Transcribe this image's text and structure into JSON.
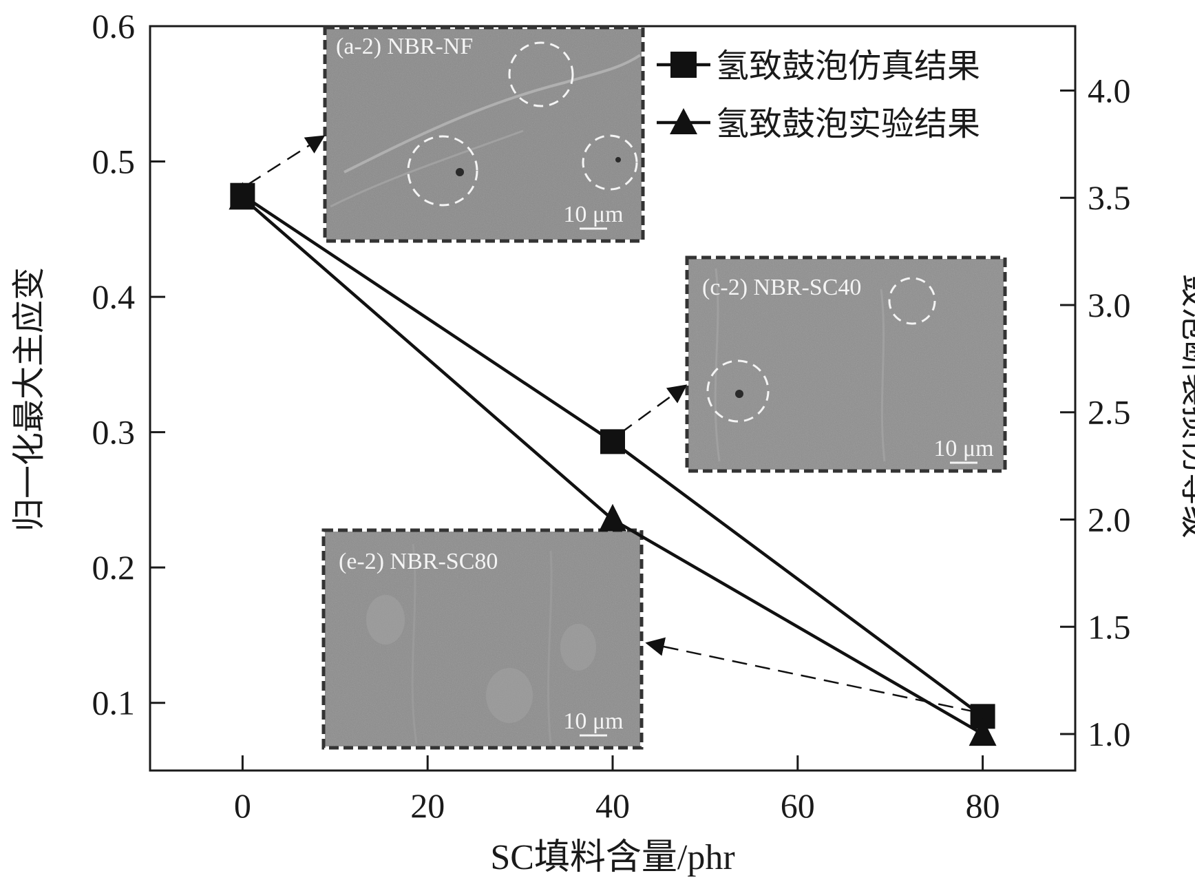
{
  "chart_data": {
    "type": "line",
    "title": "",
    "xlabel": "SC填料含量/phr",
    "ylabel_left": "归一化最大主应变",
    "ylabel_right": "鼓泡断裂损伤等级",
    "xlim": [
      -10,
      90
    ],
    "ylim_left": [
      0.05,
      0.6
    ],
    "ylim_right": [
      0.83,
      4.3
    ],
    "x_ticks": [
      "0",
      "20",
      "40",
      "60",
      "80"
    ],
    "x_tick_values": [
      0,
      20,
      40,
      60,
      80
    ],
    "y_left_ticks": [
      "0.1",
      "0.2",
      "0.3",
      "0.4",
      "0.5",
      "0.6"
    ],
    "y_left_tick_values": [
      0.1,
      0.2,
      0.3,
      0.4,
      0.5,
      0.6
    ],
    "y_right_ticks": [
      "1.0",
      "1.5",
      "2.0",
      "2.5",
      "3.0",
      "3.5",
      "4.0"
    ],
    "y_right_tick_values": [
      1.0,
      1.5,
      2.0,
      2.5,
      3.0,
      3.5,
      4.0
    ],
    "grid": false,
    "legend_position": "top-right",
    "series": [
      {
        "name": "氢致鼓泡仿真结果",
        "marker": "square",
        "axis": "left",
        "x": [
          0,
          40,
          80
        ],
        "y": [
          0.475,
          0.293,
          0.09
        ]
      },
      {
        "name": "氢致鼓泡实验结果",
        "marker": "triangle",
        "axis": "right",
        "x": [
          0,
          40,
          80
        ],
        "y": [
          3.5,
          2.0,
          1.0
        ]
      }
    ],
    "insets": [
      {
        "label": "(a-2) NBR-NF",
        "scale": "10 μm",
        "points_to_x": 0
      },
      {
        "label": "(c-2) NBR-SC40",
        "scale": "10 μm",
        "points_to_x": 40
      },
      {
        "label": "(e-2) NBR-SC80",
        "scale": "10 μm",
        "points_to_x": 80
      }
    ]
  }
}
